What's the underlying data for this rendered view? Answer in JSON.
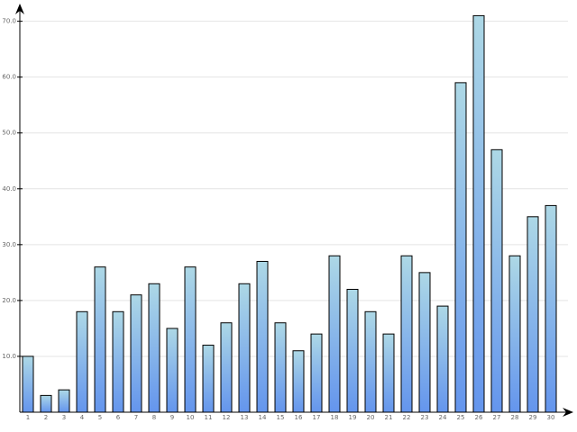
{
  "chart_data": {
    "type": "bar",
    "categories": [
      "1",
      "2",
      "3",
      "4",
      "5",
      "6",
      "7",
      "8",
      "9",
      "10",
      "11",
      "12",
      "13",
      "14",
      "15",
      "16",
      "17",
      "18",
      "19",
      "20",
      "21",
      "22",
      "23",
      "24",
      "25",
      "26",
      "27",
      "28",
      "29",
      "30"
    ],
    "values": [
      10,
      3,
      4,
      18,
      26,
      18,
      21,
      23,
      15,
      26,
      12,
      16,
      23,
      27,
      16,
      11,
      14,
      28,
      22,
      18,
      14,
      28,
      25,
      19,
      59,
      71,
      47,
      28,
      35,
      37
    ],
    "color": [
      "#add8e6",
      "#6495ed"
    ],
    "ylim": [
      0,
      73
    ],
    "yticks": [
      {
        "value": 10,
        "label": "10.0"
      },
      {
        "value": 20,
        "label": "20.0"
      },
      {
        "value": 30,
        "label": "30.0"
      },
      {
        "value": 40,
        "label": "40.0"
      },
      {
        "value": 50,
        "label": "50.0"
      },
      {
        "value": 60,
        "label": "60.0"
      },
      {
        "value": 70,
        "label": "70.0"
      }
    ],
    "grid": true
  }
}
